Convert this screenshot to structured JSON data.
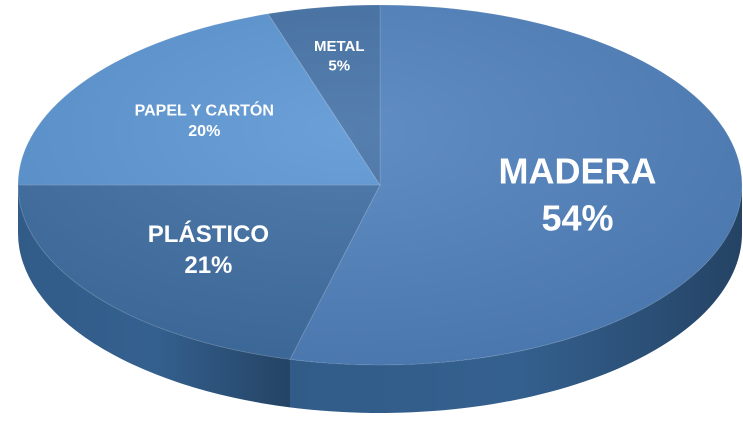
{
  "chart_data": {
    "type": "pie",
    "style": "3d",
    "title": "",
    "slices": [
      {
        "label": "MADERA",
        "value": 54,
        "value_label": "54%",
        "color": "#4f81bd"
      },
      {
        "label": "PLÁSTICO",
        "value": 21,
        "value_label": "21%",
        "color": "#3e6ea3"
      },
      {
        "label": "PAPEL Y CARTÓN",
        "value": 20,
        "value_label": "20%",
        "color": "#5a95d3"
      },
      {
        "label": "METAL",
        "value": 5,
        "value_label": "5%",
        "color": "#4371a6"
      }
    ],
    "side_color": "#34608f",
    "legend": "none"
  }
}
